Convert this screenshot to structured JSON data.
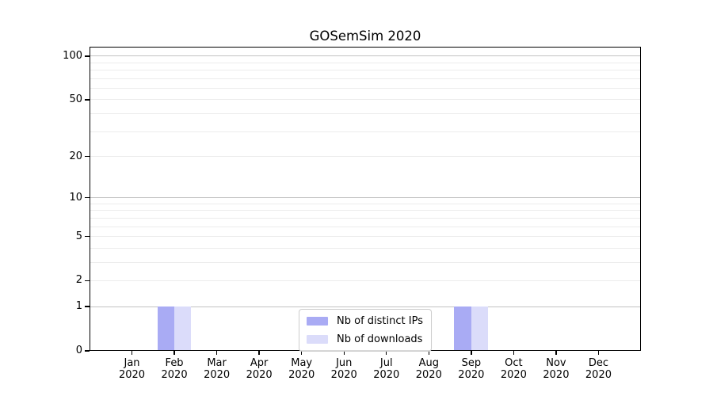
{
  "figure": {
    "background": "#ffffff"
  },
  "chart_data": {
    "type": "bar",
    "title": "GOSemSim 2020",
    "categories": [
      "Jan 2020",
      "Feb 2020",
      "Mar 2020",
      "Apr 2020",
      "May 2020",
      "Jun 2020",
      "Jul 2020",
      "Aug 2020",
      "Sep 2020",
      "Oct 2020",
      "Nov 2020",
      "Dec 2020"
    ],
    "x_tick_month_labels": [
      "Jan",
      "Feb",
      "Mar",
      "Apr",
      "May",
      "Jun",
      "Jul",
      "Aug",
      "Sep",
      "Oct",
      "Nov",
      "Dec"
    ],
    "x_tick_year_label": "2020",
    "series": [
      {
        "name": "Nb of distinct IPs",
        "color": "#a9abf4",
        "values": [
          0,
          1,
          0,
          0,
          0,
          0,
          0,
          0,
          1,
          0,
          0,
          0
        ]
      },
      {
        "name": "Nb of downloads",
        "color": "#dbdcfa",
        "values": [
          0,
          1,
          0,
          0,
          0,
          0,
          0,
          0,
          1,
          0,
          0,
          0
        ]
      }
    ],
    "yscale": "log1p",
    "ylim": [
      0,
      116
    ],
    "ytick_values": [
      0,
      1,
      2,
      5,
      10,
      20,
      50,
      100
    ],
    "ytick_labels": [
      "0",
      "1",
      "2",
      "5",
      "10",
      "20",
      "50",
      "100"
    ],
    "grid": "horizontal",
    "grid_major_values": [
      1,
      10,
      100
    ],
    "grid_minor_values": [
      2,
      3,
      4,
      5,
      6,
      7,
      8,
      9,
      20,
      30,
      40,
      50,
      60,
      70,
      80,
      90
    ],
    "legend_position": "lower center",
    "colors": {
      "grid_major": "#c3c3c3",
      "grid_minor": "#ececec",
      "axis": "#000000",
      "text": "#000000",
      "legend_border": "#cccccc",
      "plot_background": "#ffffff"
    }
  },
  "legend": {
    "items": [
      {
        "label": "Nb of distinct IPs",
        "color": "#a9abf4"
      },
      {
        "label": "Nb of downloads",
        "color": "#dbdcfa"
      }
    ]
  }
}
